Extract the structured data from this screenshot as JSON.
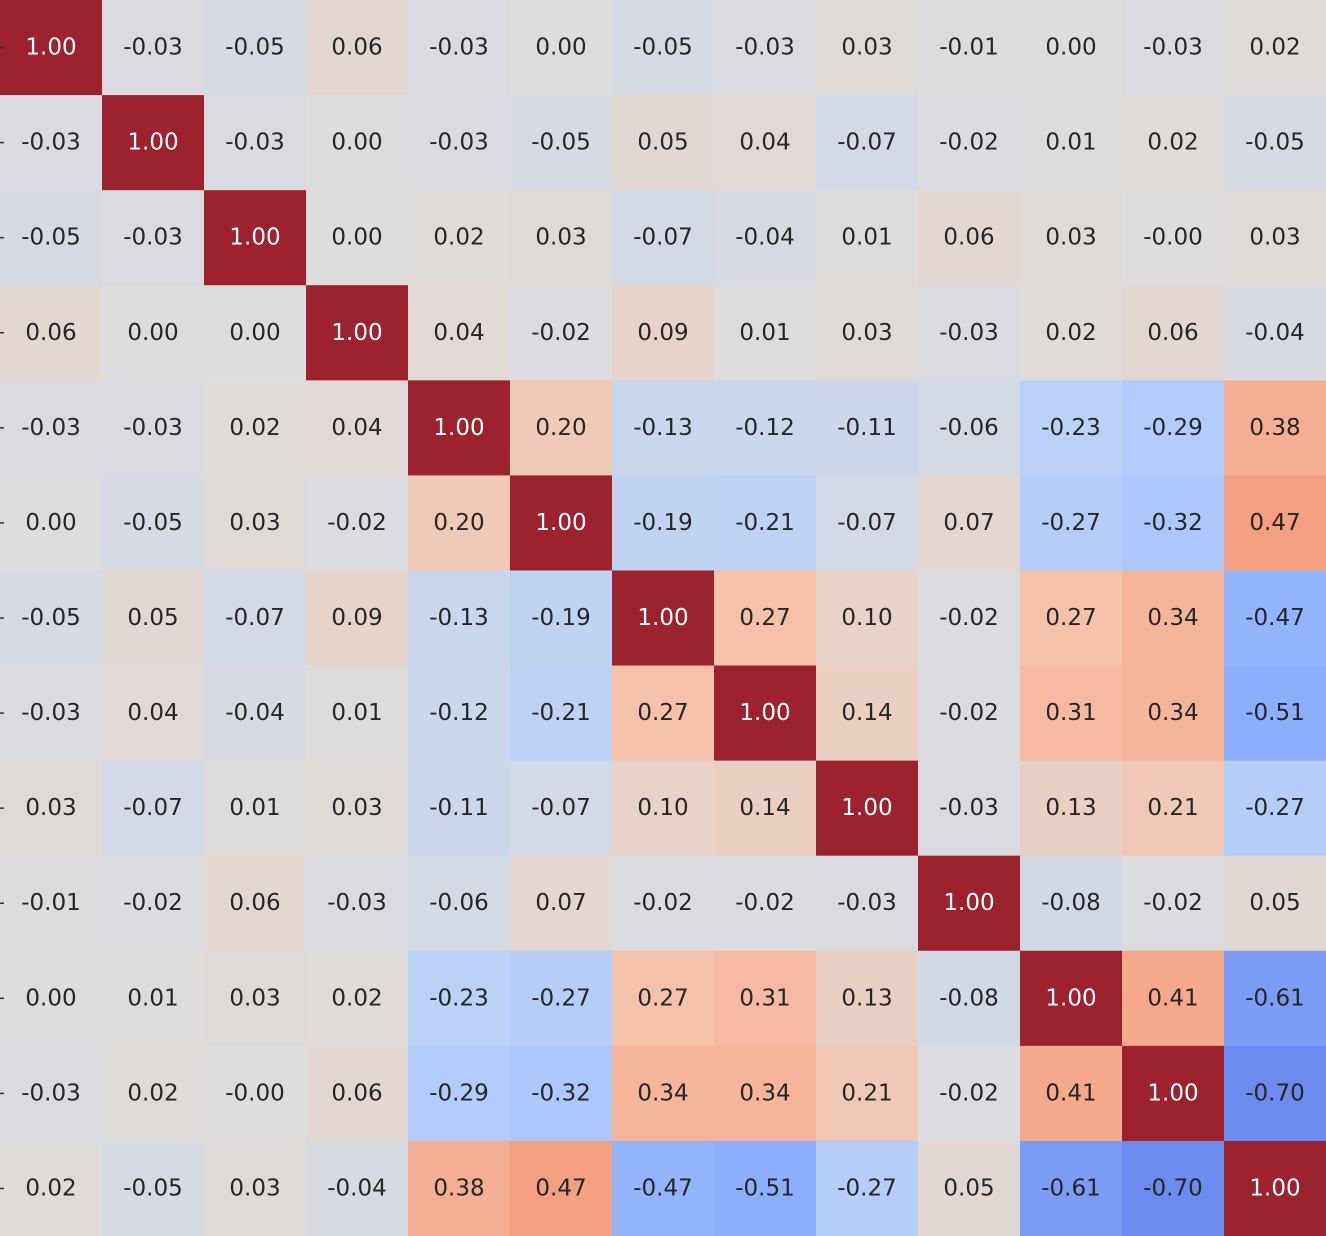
{
  "chart_data": {
    "type": "heatmap",
    "title": "",
    "xlabel": "",
    "ylabel": "",
    "colormap": "coolwarm",
    "vmin": -1.0,
    "vmax": 1.0,
    "value_format": "0.00",
    "matrix": [
      [
        "1.00",
        "-0.03",
        "-0.05",
        "0.06",
        "-0.03",
        "0.00",
        "-0.05",
        "-0.03",
        "0.03",
        "-0.01",
        "0.00",
        "-0.03",
        "0.02"
      ],
      [
        "-0.03",
        "1.00",
        "-0.03",
        "0.00",
        "-0.03",
        "-0.05",
        "0.05",
        "0.04",
        "-0.07",
        "-0.02",
        "0.01",
        "0.02",
        "-0.05"
      ],
      [
        "-0.05",
        "-0.03",
        "1.00",
        "0.00",
        "0.02",
        "0.03",
        "-0.07",
        "-0.04",
        "0.01",
        "0.06",
        "0.03",
        "-0.00",
        "0.03"
      ],
      [
        "0.06",
        "0.00",
        "0.00",
        "1.00",
        "0.04",
        "-0.02",
        "0.09",
        "0.01",
        "0.03",
        "-0.03",
        "0.02",
        "0.06",
        "-0.04"
      ],
      [
        "-0.03",
        "-0.03",
        "0.02",
        "0.04",
        "1.00",
        "0.20",
        "-0.13",
        "-0.12",
        "-0.11",
        "-0.06",
        "-0.23",
        "-0.29",
        "0.38"
      ],
      [
        "0.00",
        "-0.05",
        "0.03",
        "-0.02",
        "0.20",
        "1.00",
        "-0.19",
        "-0.21",
        "-0.07",
        "0.07",
        "-0.27",
        "-0.32",
        "0.47"
      ],
      [
        "-0.05",
        "0.05",
        "-0.07",
        "0.09",
        "-0.13",
        "-0.19",
        "1.00",
        "0.27",
        "0.10",
        "-0.02",
        "0.27",
        "0.34",
        "-0.47"
      ],
      [
        "-0.03",
        "0.04",
        "-0.04",
        "0.01",
        "-0.12",
        "-0.21",
        "0.27",
        "1.00",
        "0.14",
        "-0.02",
        "0.31",
        "0.34",
        "-0.51"
      ],
      [
        "0.03",
        "-0.07",
        "0.01",
        "0.03",
        "-0.11",
        "-0.07",
        "0.10",
        "0.14",
        "1.00",
        "-0.03",
        "0.13",
        "0.21",
        "-0.27"
      ],
      [
        "-0.01",
        "-0.02",
        "0.06",
        "-0.03",
        "-0.06",
        "0.07",
        "-0.02",
        "-0.02",
        "-0.03",
        "1.00",
        "-0.08",
        "-0.02",
        "0.05"
      ],
      [
        "0.00",
        "0.01",
        "0.03",
        "0.02",
        "-0.23",
        "-0.27",
        "0.27",
        "0.31",
        "0.13",
        "-0.08",
        "1.00",
        "0.41",
        "-0.61"
      ],
      [
        "-0.03",
        "0.02",
        "-0.00",
        "0.06",
        "-0.29",
        "-0.32",
        "0.34",
        "0.34",
        "0.21",
        "-0.02",
        "0.41",
        "1.00",
        "-0.70"
      ],
      [
        "0.02",
        "-0.05",
        "0.03",
        "-0.04",
        "0.38",
        "0.47",
        "-0.47",
        "-0.51",
        "-0.27",
        "0.05",
        "-0.61",
        "-0.70",
        "1.00"
      ]
    ]
  }
}
